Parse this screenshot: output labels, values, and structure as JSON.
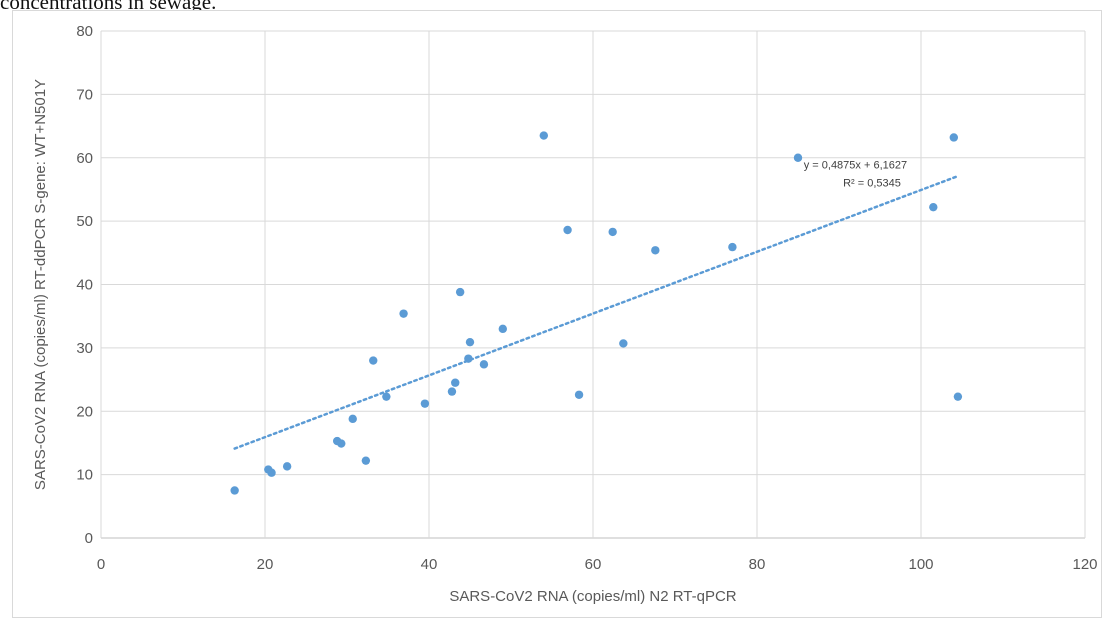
{
  "caption": "concentrations in sewage.",
  "chart_data": {
    "type": "scatter",
    "title": "",
    "xlabel": "SARS-CoV2 RNA (copies/ml) N2 RT-qPCR",
    "ylabel": "SARS-CoV2 RNA (copies/ml) RT-ddPCR S-gene: WT+N501Y",
    "xlim": [
      0,
      120
    ],
    "ylim": [
      0,
      80
    ],
    "xticks": [
      0,
      20,
      40,
      60,
      80,
      100,
      120
    ],
    "yticks": [
      0,
      10,
      20,
      30,
      40,
      50,
      60,
      70,
      80
    ],
    "grid": true,
    "marker_color": "#5b9bd5",
    "trendline_color": "#5b9bd5",
    "points": [
      {
        "x": 16.3,
        "y": 7.5
      },
      {
        "x": 20.4,
        "y": 10.8
      },
      {
        "x": 20.8,
        "y": 10.3
      },
      {
        "x": 22.7,
        "y": 11.3
      },
      {
        "x": 28.8,
        "y": 15.3
      },
      {
        "x": 29.3,
        "y": 14.9
      },
      {
        "x": 30.7,
        "y": 18.8
      },
      {
        "x": 32.3,
        "y": 12.2
      },
      {
        "x": 33.2,
        "y": 28.0
      },
      {
        "x": 34.8,
        "y": 22.3
      },
      {
        "x": 36.9,
        "y": 35.4
      },
      {
        "x": 39.5,
        "y": 21.2
      },
      {
        "x": 42.8,
        "y": 23.1
      },
      {
        "x": 43.2,
        "y": 24.5
      },
      {
        "x": 43.8,
        "y": 38.8
      },
      {
        "x": 44.8,
        "y": 28.3
      },
      {
        "x": 45.0,
        "y": 30.9
      },
      {
        "x": 46.7,
        "y": 27.4
      },
      {
        "x": 49.0,
        "y": 33.0
      },
      {
        "x": 54.0,
        "y": 63.5
      },
      {
        "x": 56.9,
        "y": 48.6
      },
      {
        "x": 58.3,
        "y": 22.6
      },
      {
        "x": 62.4,
        "y": 48.3
      },
      {
        "x": 63.7,
        "y": 30.7
      },
      {
        "x": 67.6,
        "y": 45.4
      },
      {
        "x": 77.0,
        "y": 45.9
      },
      {
        "x": 85.0,
        "y": 60.0
      },
      {
        "x": 101.5,
        "y": 52.2
      },
      {
        "x": 104.0,
        "y": 63.2
      },
      {
        "x": 104.5,
        "y": 22.3
      }
    ],
    "trendline": {
      "slope": 0.4875,
      "intercept": 6.1627,
      "x_range": [
        16.3,
        104.5
      ],
      "equation": "y = 0,4875x  + 6,1627",
      "r_squared": "R² = 0,5345"
    }
  }
}
